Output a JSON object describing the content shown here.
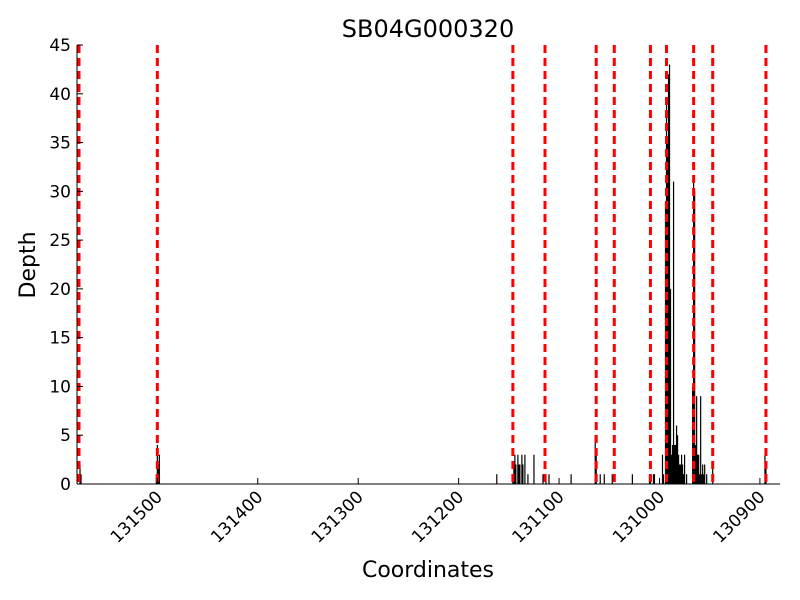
{
  "chart_data": {
    "type": "bar",
    "title": "SB04G000320",
    "xlabel": "Coordinates",
    "ylabel": "Depth",
    "xlim": [
      131580,
      130880
    ],
    "ylim": [
      0,
      45
    ],
    "x_reversed": true,
    "grid": false,
    "yticks": [
      0,
      5,
      10,
      15,
      20,
      25,
      30,
      35,
      40,
      45
    ],
    "xticks": [
      131500,
      131400,
      131300,
      131200,
      131100,
      131000,
      130900
    ],
    "xtick_labels": [
      "131500",
      "131400",
      "131300",
      "131200",
      "131100",
      "131000",
      "130900"
    ],
    "colors": {
      "bars": "#000000",
      "markers": "#ff0000"
    },
    "marker_lines": [
      131578,
      131500,
      131146,
      131114,
      131063,
      131045,
      131009,
      130993,
      130966,
      130947,
      130894
    ],
    "bars": [
      {
        "x": 131577,
        "y": 2
      },
      {
        "x": 131576,
        "y": 1
      },
      {
        "x": 131501,
        "y": 1
      },
      {
        "x": 131500,
        "y": 4
      },
      {
        "x": 131499,
        "y": 2
      },
      {
        "x": 131498,
        "y": 3
      },
      {
        "x": 131162,
        "y": 1
      },
      {
        "x": 131146,
        "y": 1
      },
      {
        "x": 131145,
        "y": 2
      },
      {
        "x": 131144,
        "y": 3
      },
      {
        "x": 131143,
        "y": 2
      },
      {
        "x": 131141,
        "y": 3
      },
      {
        "x": 131140,
        "y": 2
      },
      {
        "x": 131139,
        "y": 2
      },
      {
        "x": 131137,
        "y": 3
      },
      {
        "x": 131136,
        "y": 2
      },
      {
        "x": 131134,
        "y": 3
      },
      {
        "x": 131131,
        "y": 1
      },
      {
        "x": 131125,
        "y": 3
      },
      {
        "x": 131116,
        "y": 1
      },
      {
        "x": 131113,
        "y": 1
      },
      {
        "x": 131110,
        "y": 1
      },
      {
        "x": 131088,
        "y": 1
      },
      {
        "x": 131064,
        "y": 5
      },
      {
        "x": 131063,
        "y": 3
      },
      {
        "x": 131059,
        "y": 1
      },
      {
        "x": 131055,
        "y": 1
      },
      {
        "x": 131047,
        "y": 1
      },
      {
        "x": 131027,
        "y": 1
      },
      {
        "x": 131010,
        "y": 1
      },
      {
        "x": 131009,
        "y": 1
      },
      {
        "x": 131006,
        "y": 1
      },
      {
        "x": 131005,
        "y": 1
      },
      {
        "x": 130997,
        "y": 3
      },
      {
        "x": 130996,
        "y": 1
      },
      {
        "x": 130994,
        "y": 29
      },
      {
        "x": 130993,
        "y": 39
      },
      {
        "x": 130992,
        "y": 35
      },
      {
        "x": 130991,
        "y": 42
      },
      {
        "x": 130990,
        "y": 43
      },
      {
        "x": 130989,
        "y": 20
      },
      {
        "x": 130988,
        "y": 3
      },
      {
        "x": 130987,
        "y": 4
      },
      {
        "x": 130986,
        "y": 31
      },
      {
        "x": 130985,
        "y": 4
      },
      {
        "x": 130984,
        "y": 4
      },
      {
        "x": 130983,
        "y": 6
      },
      {
        "x": 130982,
        "y": 5
      },
      {
        "x": 130981,
        "y": 3
      },
      {
        "x": 130980,
        "y": 2
      },
      {
        "x": 130979,
        "y": 2
      },
      {
        "x": 130978,
        "y": 3
      },
      {
        "x": 130977,
        "y": 2
      },
      {
        "x": 130976,
        "y": 1
      },
      {
        "x": 130975,
        "y": 3
      },
      {
        "x": 130973,
        "y": 1
      },
      {
        "x": 130967,
        "y": 10
      },
      {
        "x": 130966,
        "y": 31
      },
      {
        "x": 130965,
        "y": 30
      },
      {
        "x": 130964,
        "y": 4
      },
      {
        "x": 130963,
        "y": 9
      },
      {
        "x": 130962,
        "y": 3
      },
      {
        "x": 130961,
        "y": 3
      },
      {
        "x": 130960,
        "y": 1
      },
      {
        "x": 130959,
        "y": 9
      },
      {
        "x": 130958,
        "y": 1
      },
      {
        "x": 130957,
        "y": 2
      },
      {
        "x": 130956,
        "y": 1
      },
      {
        "x": 130955,
        "y": 2
      },
      {
        "x": 130953,
        "y": 1
      },
      {
        "x": 130947,
        "y": 2
      },
      {
        "x": 130895,
        "y": 3
      },
      {
        "x": 130894,
        "y": 2
      }
    ]
  }
}
